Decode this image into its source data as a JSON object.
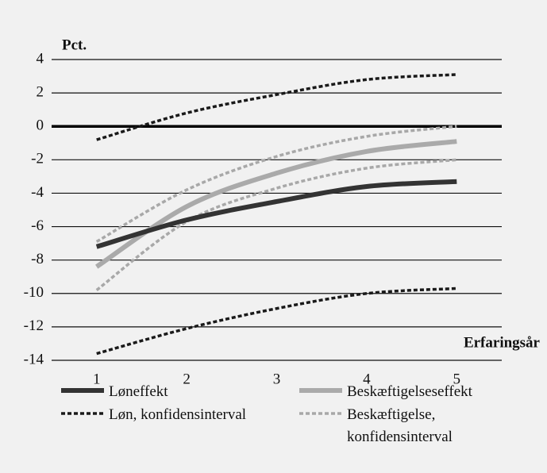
{
  "chart_data": {
    "type": "line",
    "y_label": "Pct.",
    "x_label": "Erfaringsår",
    "categories": [
      "1",
      "2",
      "3",
      "4",
      "5"
    ],
    "ylim": [
      -14,
      4
    ],
    "yticks": [
      -14,
      -12,
      -10,
      -8,
      -6,
      -4,
      -2,
      0,
      2,
      4
    ],
    "grid": true,
    "series": [
      {
        "name": "Løneffekt",
        "color": "#333333",
        "style": "solid",
        "values": [
          -7.2,
          -5.6,
          -4.5,
          -3.6,
          -3.3
        ]
      },
      {
        "name": "Beskæftigelseseffekt",
        "color": "#aaaaaa",
        "style": "solid",
        "values": [
          -8.4,
          -4.8,
          -2.8,
          -1.5,
          -0.9
        ]
      },
      {
        "name": "Løn, konfidensinterval",
        "color": "#1a1a1a",
        "style": "dashed",
        "upper": [
          -0.8,
          0.8,
          1.9,
          2.8,
          3.1
        ],
        "lower": [
          -13.6,
          -12.1,
          -10.9,
          -10.0,
          -9.7
        ]
      },
      {
        "name": "Beskæftigelse, konfidensinterval",
        "color": "#a8a8a8",
        "style": "dashed",
        "upper": [
          -6.9,
          -3.8,
          -1.8,
          -0.6,
          0.0
        ],
        "lower": [
          -9.8,
          -5.7,
          -3.7,
          -2.5,
          -2.0
        ]
      }
    ]
  }
}
